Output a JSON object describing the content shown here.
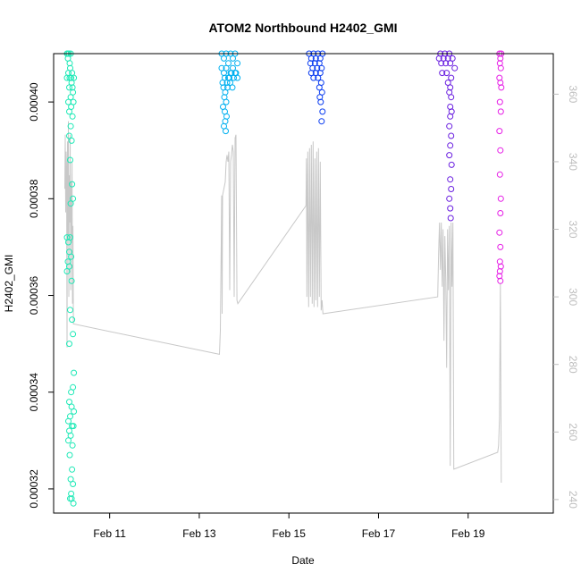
{
  "chart_data": {
    "type": "scatter",
    "title": "ATOM2 Northbound H2402_GMI",
    "xlabel": "Date",
    "ylabel": "H2402_GMI",
    "x_unit": "days",
    "xlim": [
      9.75,
      20.9
    ],
    "ylim": [
      0.000315,
      0.00041
    ],
    "y2lim": [
      236,
      372
    ],
    "x_ticks": [
      {
        "value": 11,
        "label": "Feb 11"
      },
      {
        "value": 13,
        "label": "Feb 13"
      },
      {
        "value": 15,
        "label": "Feb 15"
      },
      {
        "value": 17,
        "label": "Feb 17"
      },
      {
        "value": 19,
        "label": "Feb 19"
      }
    ],
    "y_ticks": [
      {
        "value": 0.00032,
        "label": "0.00032"
      },
      {
        "value": 0.00034,
        "label": "0.00034"
      },
      {
        "value": 0.00036,
        "label": "0.00036"
      },
      {
        "value": 0.00038,
        "label": "0.00038"
      },
      {
        "value": 0.0004,
        "label": "0.00040"
      }
    ],
    "y2_ticks": [
      {
        "value": 240,
        "label": "240"
      },
      {
        "value": 260,
        "label": "260"
      },
      {
        "value": 280,
        "label": "280"
      },
      {
        "value": 300,
        "label": "300"
      },
      {
        "value": 320,
        "label": "320"
      },
      {
        "value": 340,
        "label": "340"
      },
      {
        "value": 360,
        "label": "360"
      }
    ],
    "grid": false,
    "series": [
      {
        "color": "#1de9b6",
        "points": [
          [
            10.05,
            0.00041
          ],
          [
            10.07,
            0.000409
          ],
          [
            10.09,
            0.00041
          ],
          [
            10.11,
            0.000408
          ],
          [
            10.13,
            0.00041
          ],
          [
            10.05,
            0.000405
          ],
          [
            10.08,
            0.000406
          ],
          [
            10.12,
            0.000407
          ],
          [
            10.14,
            0.000405
          ],
          [
            10.16,
            0.000406
          ],
          [
            10.1,
            0.000403
          ],
          [
            10.15,
            0.000404
          ],
          [
            10.2,
            0.000405
          ],
          [
            10.18,
            0.000402
          ],
          [
            10.13,
            0.000401
          ],
          [
            10.08,
            0.0004
          ],
          [
            10.14,
            0.000399
          ],
          [
            10.19,
            0.0004
          ],
          [
            10.1,
            0.000398
          ],
          [
            10.17,
            0.000397
          ],
          [
            10.13,
            0.000395
          ],
          [
            10.1,
            0.000393
          ],
          [
            10.15,
            0.000392
          ],
          [
            10.12,
            0.000388
          ],
          [
            10.16,
            0.000383
          ],
          [
            10.13,
            0.000379
          ],
          [
            10.18,
            0.00038
          ],
          [
            10.05,
            0.000372
          ],
          [
            10.08,
            0.000371
          ],
          [
            10.1,
            0.000369
          ],
          [
            10.12,
            0.000372
          ],
          [
            10.07,
            0.000367
          ],
          [
            10.1,
            0.000366
          ],
          [
            10.05,
            0.000365
          ],
          [
            10.14,
            0.000368
          ],
          [
            10.15,
            0.000363
          ],
          [
            10.12,
            0.000357
          ],
          [
            10.16,
            0.000355
          ],
          [
            10.18,
            0.000352
          ],
          [
            10.1,
            0.00035
          ],
          [
            10.2,
            0.000344
          ],
          [
            10.14,
            0.00034
          ],
          [
            10.18,
            0.000341
          ],
          [
            10.1,
            0.000338
          ],
          [
            10.15,
            0.000337
          ],
          [
            10.12,
            0.000335
          ],
          [
            10.2,
            0.000336
          ],
          [
            10.08,
            0.000334
          ],
          [
            10.16,
            0.000333
          ],
          [
            10.1,
            0.000332
          ],
          [
            10.19,
            0.000333
          ],
          [
            10.13,
            0.000331
          ],
          [
            10.08,
            0.00033
          ],
          [
            10.17,
            0.000329
          ],
          [
            10.11,
            0.000327
          ],
          [
            10.16,
            0.000324
          ],
          [
            10.13,
            0.000322
          ],
          [
            10.18,
            0.000321
          ],
          [
            10.14,
            0.000319
          ],
          [
            10.12,
            0.000318
          ],
          [
            10.19,
            0.000317
          ],
          [
            10.15,
            0.000318
          ],
          [
            10.06,
            0.00041
          ],
          [
            10.11,
            0.000405
          ],
          [
            10.17,
            0.000403
          ]
        ]
      },
      {
        "color": "#00b0f0",
        "points": [
          [
            13.5,
            0.00041
          ],
          [
            13.55,
            0.000409
          ],
          [
            13.6,
            0.00041
          ],
          [
            13.65,
            0.000408
          ],
          [
            13.7,
            0.00041
          ],
          [
            13.75,
            0.000409
          ],
          [
            13.8,
            0.00041
          ],
          [
            13.85,
            0.000408
          ],
          [
            13.5,
            0.000407
          ],
          [
            13.55,
            0.000406
          ],
          [
            13.6,
            0.000407
          ],
          [
            13.65,
            0.000405
          ],
          [
            13.7,
            0.000406
          ],
          [
            13.75,
            0.000407
          ],
          [
            13.8,
            0.000406
          ],
          [
            13.85,
            0.000405
          ],
          [
            13.52,
            0.000404
          ],
          [
            13.57,
            0.000405
          ],
          [
            13.62,
            0.000404
          ],
          [
            13.67,
            0.000405
          ],
          [
            13.72,
            0.000406
          ],
          [
            13.77,
            0.000405
          ],
          [
            13.82,
            0.000406
          ],
          [
            13.54,
            0.000403
          ],
          [
            13.58,
            0.000402
          ],
          [
            13.63,
            0.000403
          ],
          [
            13.69,
            0.000404
          ],
          [
            13.74,
            0.000403
          ],
          [
            13.56,
            0.000401
          ],
          [
            13.6,
            0.0004
          ],
          [
            13.53,
            0.000399
          ],
          [
            13.57,
            0.000398
          ],
          [
            13.61,
            0.000397
          ],
          [
            13.58,
            0.000396
          ],
          [
            13.55,
            0.000395
          ],
          [
            13.59,
            0.000394
          ]
        ]
      },
      {
        "color": "#0a3cf0",
        "points": [
          [
            15.45,
            0.00041
          ],
          [
            15.5,
            0.000409
          ],
          [
            15.55,
            0.00041
          ],
          [
            15.6,
            0.000409
          ],
          [
            15.65,
            0.00041
          ],
          [
            15.7,
            0.000409
          ],
          [
            15.75,
            0.00041
          ],
          [
            15.48,
            0.000408
          ],
          [
            15.53,
            0.000407
          ],
          [
            15.58,
            0.000408
          ],
          [
            15.63,
            0.000407
          ],
          [
            15.68,
            0.000408
          ],
          [
            15.73,
            0.000407
          ],
          [
            15.5,
            0.000406
          ],
          [
            15.55,
            0.000405
          ],
          [
            15.6,
            0.000406
          ],
          [
            15.65,
            0.000405
          ],
          [
            15.7,
            0.000406
          ],
          [
            15.72,
            0.000404
          ],
          [
            15.68,
            0.000403
          ],
          [
            15.74,
            0.000402
          ],
          [
            15.71,
            0.0004
          ],
          [
            15.75,
            0.000398
          ],
          [
            15.73,
            0.000396
          ],
          [
            15.69,
            0.000401
          ]
        ]
      },
      {
        "color": "#6a1fe0",
        "points": [
          [
            18.35,
            0.000409
          ],
          [
            18.4,
            0.000408
          ],
          [
            18.45,
            0.000409
          ],
          [
            18.5,
            0.000408
          ],
          [
            18.55,
            0.000409
          ],
          [
            18.6,
            0.000408
          ],
          [
            18.65,
            0.000409
          ],
          [
            18.7,
            0.000407
          ],
          [
            18.38,
            0.00041
          ],
          [
            18.48,
            0.00041
          ],
          [
            18.58,
            0.00041
          ],
          [
            18.42,
            0.000406
          ],
          [
            18.52,
            0.000406
          ],
          [
            18.62,
            0.000405
          ],
          [
            18.55,
            0.000404
          ],
          [
            18.6,
            0.000403
          ],
          [
            18.58,
            0.000402
          ],
          [
            18.62,
            0.000401
          ],
          [
            18.6,
            0.000399
          ],
          [
            18.63,
            0.000398
          ],
          [
            18.6,
            0.000397
          ],
          [
            18.58,
            0.000395
          ],
          [
            18.62,
            0.000393
          ],
          [
            18.6,
            0.000391
          ],
          [
            18.58,
            0.000389
          ],
          [
            18.63,
            0.000387
          ],
          [
            18.6,
            0.000384
          ],
          [
            18.62,
            0.000382
          ],
          [
            18.58,
            0.00038
          ],
          [
            18.6,
            0.000378
          ],
          [
            18.61,
            0.000376
          ]
        ]
      },
      {
        "color": "#e61ee6",
        "points": [
          [
            19.7,
            0.00041
          ],
          [
            19.72,
            0.000409
          ],
          [
            19.74,
            0.00041
          ],
          [
            19.71,
            0.000408
          ],
          [
            19.73,
            0.000407
          ],
          [
            19.7,
            0.000405
          ],
          [
            19.72,
            0.000404
          ],
          [
            19.74,
            0.000403
          ],
          [
            19.71,
            0.0004
          ],
          [
            19.73,
            0.000398
          ],
          [
            19.7,
            0.000394
          ],
          [
            19.72,
            0.00039
          ],
          [
            19.71,
            0.000385
          ],
          [
            19.73,
            0.00038
          ],
          [
            19.72,
            0.000377
          ],
          [
            19.7,
            0.000373
          ],
          [
            19.72,
            0.00037
          ],
          [
            19.71,
            0.000367
          ],
          [
            19.73,
            0.000366
          ],
          [
            19.7,
            0.000364
          ],
          [
            19.72,
            0.000363
          ],
          [
            19.71,
            0.000365
          ]
        ]
      }
    ],
    "line_series": {
      "color": "#c8c8c8",
      "axis": "right",
      "points": [
        [
          10.0,
          332
        ],
        [
          10.01,
          348
        ],
        [
          10.02,
          325
        ],
        [
          10.03,
          343
        ],
        [
          10.04,
          338
        ],
        [
          10.05,
          285
        ],
        [
          10.06,
          346
        ],
        [
          10.07,
          318
        ],
        [
          10.08,
          352
        ],
        [
          10.09,
          300
        ],
        [
          10.1,
          336
        ],
        [
          10.11,
          322
        ],
        [
          10.12,
          348
        ],
        [
          10.13,
          302
        ],
        [
          10.14,
          334
        ],
        [
          10.15,
          316
        ],
        [
          10.16,
          340
        ],
        [
          10.17,
          298
        ],
        [
          10.18,
          321
        ],
        [
          10.19,
          292
        ],
        [
          13.45,
          283
        ],
        [
          13.47,
          290
        ],
        [
          13.49,
          316
        ],
        [
          13.5,
          330
        ],
        [
          13.51,
          295
        ],
        [
          13.52,
          330
        ],
        [
          13.58,
          334
        ],
        [
          13.6,
          340
        ],
        [
          13.62,
          342
        ],
        [
          13.64,
          340
        ],
        [
          13.66,
          343
        ],
        [
          13.68,
          302
        ],
        [
          13.7,
          340
        ],
        [
          13.72,
          342
        ],
        [
          13.74,
          345
        ],
        [
          13.76,
          343
        ],
        [
          13.78,
          300
        ],
        [
          13.8,
          347
        ],
        [
          13.82,
          348
        ],
        [
          13.84,
          299
        ],
        [
          13.86,
          298
        ],
        [
          15.38,
          327
        ],
        [
          15.39,
          341
        ],
        [
          15.4,
          300
        ],
        [
          15.42,
          343
        ],
        [
          15.44,
          297
        ],
        [
          15.46,
          344
        ],
        [
          15.48,
          300
        ],
        [
          15.5,
          345
        ],
        [
          15.52,
          298
        ],
        [
          15.54,
          346
        ],
        [
          15.56,
          297
        ],
        [
          15.58,
          341
        ],
        [
          15.6,
          299
        ],
        [
          15.62,
          343
        ],
        [
          15.64,
          297
        ],
        [
          15.66,
          344
        ],
        [
          15.68,
          300
        ],
        [
          15.7,
          340
        ],
        [
          15.72,
          296
        ],
        [
          15.74,
          299
        ],
        [
          15.76,
          295
        ],
        [
          18.32,
          300
        ],
        [
          18.34,
          313
        ],
        [
          18.36,
          322
        ],
        [
          18.38,
          308
        ],
        [
          18.4,
          322
        ],
        [
          18.42,
          303
        ],
        [
          18.44,
          320
        ],
        [
          18.46,
          287
        ],
        [
          18.48,
          318
        ],
        [
          18.5,
          305
        ],
        [
          18.52,
          279
        ],
        [
          18.54,
          320
        ],
        [
          18.56,
          302
        ],
        [
          18.58,
          321
        ],
        [
          18.6,
          250
        ],
        [
          18.62,
          322
        ],
        [
          18.64,
          303
        ],
        [
          18.66,
          322
        ],
        [
          18.68,
          249
        ],
        [
          19.66,
          254
        ],
        [
          19.68,
          256
        ],
        [
          19.7,
          264
        ],
        [
          19.72,
          304
        ],
        [
          19.74,
          245
        ]
      ]
    }
  }
}
